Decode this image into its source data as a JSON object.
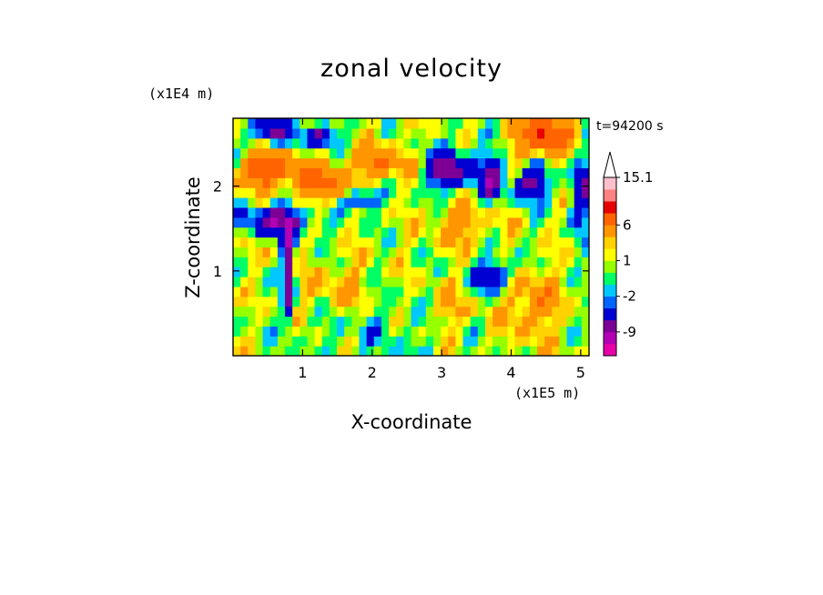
{
  "chart_data": {
    "type": "heatmap",
    "title": "zonal velocity",
    "xlabel": "X-coordinate",
    "ylabel": "Z-coordinate",
    "x_unit": "(x1E5 m)",
    "y_unit": "(x1E4 m)",
    "time_label": "t=94200 s",
    "xlim": [
      0,
      5.12
    ],
    "ylim": [
      0,
      2.8
    ],
    "x_ticks": [
      1,
      2,
      3,
      4,
      5
    ],
    "y_ticks": [
      1,
      2
    ],
    "colorbar": {
      "extend": "max",
      "levels": [
        -15,
        -12,
        -9,
        -6,
        -3,
        -2,
        -1,
        0,
        1,
        2,
        3,
        6,
        9,
        12,
        15.1
      ],
      "colors": [
        "#e800a8",
        "#b400b4",
        "#7d0096",
        "#0000d2",
        "#0064ff",
        "#00c8ff",
        "#00ff64",
        "#96ff00",
        "#ffff00",
        "#ffd200",
        "#ff9600",
        "#ff6400",
        "#e60000",
        "#ff8282",
        "#ffc0cb"
      ],
      "extend_color": "#ffffff",
      "labels": [
        "15.1",
        "6",
        "1",
        "-2",
        "-9"
      ]
    },
    "field": {
      "grid": "48 x 24",
      "x_range": [
        0,
        5.12
      ],
      "z_range": [
        0,
        2.8
      ],
      "description": "2-D contour field of zonal velocity (m/s); approximated spatial structure"
    }
  }
}
